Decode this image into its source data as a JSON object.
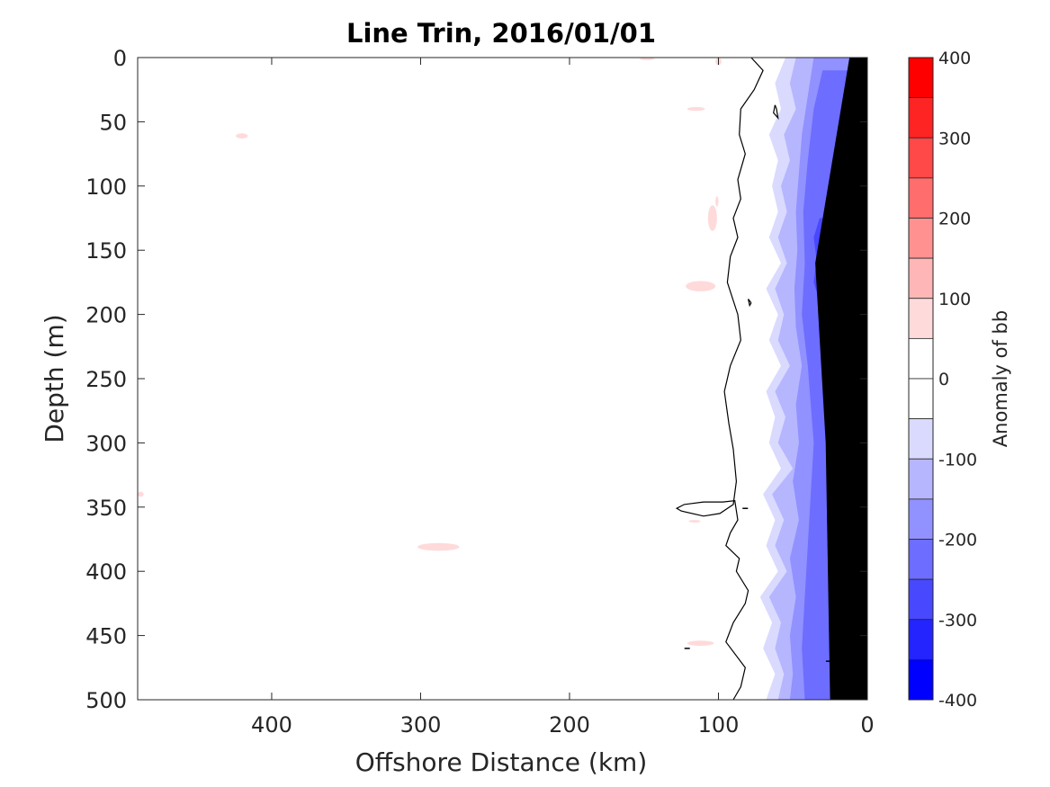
{
  "chart_data": {
    "type": "heatmap",
    "title": "Line Trin, 2016/01/01",
    "xlabel": "Offshore Distance (km)",
    "ylabel": "Depth (m)",
    "colorbar_label": "Anomaly of bb",
    "x_reversed": true,
    "y_reversed": true,
    "xlim": [
      0,
      490
    ],
    "ylim": [
      0,
      500
    ],
    "x_ticks": [
      {
        "value": 400,
        "label": "400"
      },
      {
        "value": 300,
        "label": "300"
      },
      {
        "value": 200,
        "label": "200"
      },
      {
        "value": 100,
        "label": "100"
      },
      {
        "value": 0,
        "label": "0"
      }
    ],
    "y_ticks": [
      {
        "value": 0,
        "label": "0"
      },
      {
        "value": 50,
        "label": "50"
      },
      {
        "value": 100,
        "label": "100"
      },
      {
        "value": 150,
        "label": "150"
      },
      {
        "value": 200,
        "label": "200"
      },
      {
        "value": 250,
        "label": "250"
      },
      {
        "value": 300,
        "label": "300"
      },
      {
        "value": 350,
        "label": "350"
      },
      {
        "value": 400,
        "label": "400"
      },
      {
        "value": 450,
        "label": "450"
      },
      {
        "value": 500,
        "label": "500"
      }
    ],
    "clim": [
      -400,
      400
    ],
    "colorbar_ticks": [
      {
        "value": 400,
        "label": "400"
      },
      {
        "value": 300,
        "label": "300"
      },
      {
        "value": 200,
        "label": "200"
      },
      {
        "value": 100,
        "label": "100"
      },
      {
        "value": 0,
        "label": "0"
      },
      {
        "value": -100,
        "label": "-100"
      },
      {
        "value": -200,
        "label": "-200"
      },
      {
        "value": -300,
        "label": "-300"
      },
      {
        "value": -400,
        "label": "-400"
      }
    ],
    "colorbar_levels": [
      {
        "from": 350,
        "to": 400,
        "color": "#ff0000"
      },
      {
        "from": 300,
        "to": 350,
        "color": "#ff2424"
      },
      {
        "from": 250,
        "to": 300,
        "color": "#ff4848"
      },
      {
        "from": 200,
        "to": 250,
        "color": "#ff6d6d"
      },
      {
        "from": 150,
        "to": 200,
        "color": "#ff9191"
      },
      {
        "from": 100,
        "to": 150,
        "color": "#ffb6b6"
      },
      {
        "from": 50,
        "to": 100,
        "color": "#ffdada"
      },
      {
        "from": 0,
        "to": 50,
        "color": "#ffffff"
      },
      {
        "from": -50,
        "to": 0,
        "color": "#ffffff"
      },
      {
        "from": -100,
        "to": -50,
        "color": "#dadaff"
      },
      {
        "from": -150,
        "to": -100,
        "color": "#b6b6ff"
      },
      {
        "from": -200,
        "to": -150,
        "color": "#9191ff"
      },
      {
        "from": -250,
        "to": -200,
        "color": "#6d6dff"
      },
      {
        "from": -300,
        "to": -250,
        "color": "#4848ff"
      },
      {
        "from": -350,
        "to": -300,
        "color": "#2424ff"
      },
      {
        "from": -400,
        "to": -350,
        "color": "#0000ff"
      }
    ],
    "seafloor_color": "#000000",
    "seafloor": [
      [
        0,
        0
      ],
      [
        0,
        500
      ],
      [
        25,
        500
      ],
      [
        28,
        300
      ],
      [
        35,
        160
      ],
      [
        12,
        0
      ]
    ],
    "zero_contour": [
      [
        78,
        0
      ],
      [
        70,
        10
      ],
      [
        76,
        25
      ],
      [
        85,
        40
      ],
      [
        86,
        60
      ],
      [
        82,
        75
      ],
      [
        87,
        95
      ],
      [
        85,
        110
      ],
      [
        90,
        125
      ],
      [
        87,
        140
      ],
      [
        92,
        155
      ],
      [
        94,
        175
      ],
      [
        87,
        200
      ],
      [
        85,
        220
      ],
      [
        92,
        240
      ],
      [
        96,
        260
      ],
      [
        93,
        285
      ],
      [
        90,
        305
      ],
      [
        88,
        330
      ],
      [
        90,
        348
      ],
      [
        99,
        355
      ],
      [
        110,
        357
      ],
      [
        125,
        353
      ],
      [
        128,
        351
      ],
      [
        123,
        348
      ],
      [
        110,
        346
      ],
      [
        97,
        346
      ],
      [
        89,
        345
      ],
      [
        87,
        360
      ],
      [
        92,
        370
      ],
      [
        95,
        380
      ],
      [
        86,
        390
      ],
      [
        88,
        400
      ],
      [
        80,
        415
      ],
      [
        82,
        425
      ],
      [
        90,
        440
      ],
      [
        95,
        455
      ],
      [
        82,
        475
      ],
      [
        85,
        490
      ],
      [
        90,
        500
      ]
    ],
    "small_contours": [
      [
        [
          62,
          37
        ],
        [
          63,
          43
        ],
        [
          60,
          47
        ],
        [
          61,
          40
        ],
        [
          62,
          37
        ]
      ],
      [
        [
          78,
          191
        ],
        [
          80,
          188
        ],
        [
          79,
          193
        ],
        [
          78,
          191
        ]
      ],
      [
        [
          15,
          292
        ],
        [
          21,
          288
        ],
        [
          20,
          295
        ],
        [
          15,
          292
        ]
      ],
      [
        [
          20,
          330
        ],
        [
          26,
          323
        ],
        [
          24,
          337
        ],
        [
          20,
          330
        ]
      ]
    ],
    "small_marks": [
      [
        121,
        460
      ],
      [
        82,
        351
      ],
      [
        9,
        58
      ],
      [
        26,
        470
      ]
    ],
    "anomaly_bands": [
      {
        "color": "#dadaff",
        "left": [
          [
            55,
            0
          ],
          [
            62,
            20
          ],
          [
            58,
            40
          ],
          [
            66,
            60
          ],
          [
            60,
            80
          ],
          [
            64,
            100
          ],
          [
            60,
            120
          ],
          [
            66,
            140
          ],
          [
            58,
            160
          ],
          [
            68,
            180
          ],
          [
            60,
            200
          ],
          [
            66,
            220
          ],
          [
            58,
            240
          ],
          [
            68,
            260
          ],
          [
            62,
            280
          ],
          [
            66,
            300
          ],
          [
            58,
            320
          ],
          [
            70,
            340
          ],
          [
            62,
            360
          ],
          [
            68,
            380
          ],
          [
            60,
            400
          ],
          [
            72,
            420
          ],
          [
            64,
            440
          ],
          [
            70,
            460
          ],
          [
            62,
            480
          ],
          [
            68,
            500
          ]
        ]
      },
      {
        "color": "#b6b6ff",
        "left": [
          [
            48,
            0
          ],
          [
            52,
            20
          ],
          [
            48,
            40
          ],
          [
            56,
            60
          ],
          [
            52,
            80
          ],
          [
            58,
            100
          ],
          [
            54,
            120
          ],
          [
            60,
            140
          ],
          [
            54,
            160
          ],
          [
            62,
            180
          ],
          [
            56,
            200
          ],
          [
            60,
            220
          ],
          [
            52,
            240
          ],
          [
            62,
            260
          ],
          [
            55,
            280
          ],
          [
            60,
            300
          ],
          [
            50,
            320
          ],
          [
            64,
            340
          ],
          [
            56,
            360
          ],
          [
            62,
            380
          ],
          [
            54,
            400
          ],
          [
            66,
            420
          ],
          [
            58,
            440
          ],
          [
            62,
            460
          ],
          [
            56,
            480
          ],
          [
            60,
            500
          ]
        ]
      },
      {
        "color": "#9191ff",
        "left": [
          [
            36,
            0
          ],
          [
            40,
            30
          ],
          [
            44,
            60
          ],
          [
            46,
            90
          ],
          [
            48,
            120
          ],
          [
            47,
            150
          ],
          [
            49,
            180
          ],
          [
            48,
            210
          ],
          [
            44,
            240
          ],
          [
            48,
            270
          ],
          [
            46,
            300
          ],
          [
            50,
            330
          ],
          [
            46,
            360
          ],
          [
            52,
            390
          ],
          [
            48,
            420
          ],
          [
            52,
            450
          ],
          [
            50,
            480
          ],
          [
            52,
            500
          ]
        ]
      },
      {
        "color": "#6d6dff",
        "left": [
          [
            30,
            10
          ],
          [
            36,
            40
          ],
          [
            40,
            80
          ],
          [
            43,
            120
          ],
          [
            42,
            160
          ],
          [
            44,
            200
          ],
          [
            40,
            240
          ],
          [
            38,
            270
          ],
          [
            36,
            300
          ],
          [
            38,
            340
          ],
          [
            40,
            380
          ],
          [
            42,
            420
          ],
          [
            44,
            460
          ],
          [
            42,
            500
          ]
        ]
      },
      {
        "color": "#4848ff",
        "left": [
          [
            32,
            125
          ],
          [
            36,
            140
          ],
          [
            34,
            158
          ],
          [
            36,
            175
          ],
          [
            32,
            190
          ]
        ]
      }
    ],
    "weak_positive_patches": [
      {
        "center": [
          420,
          61
        ],
        "rx": 4,
        "ry": 2
      },
      {
        "center": [
          288,
          381
        ],
        "rx": 14,
        "ry": 3
      },
      {
        "center": [
          148,
          1
        ],
        "rx": 5,
        "ry": 1
      },
      {
        "center": [
          100,
          3
        ],
        "rx": 2,
        "ry": 3
      },
      {
        "center": [
          115,
          40
        ],
        "rx": 6,
        "ry": 1.5
      },
      {
        "center": [
          104,
          125
        ],
        "rx": 3,
        "ry": 10
      },
      {
        "center": [
          101,
          112
        ],
        "rx": 1,
        "ry": 4
      },
      {
        "center": [
          112,
          178
        ],
        "rx": 10,
        "ry": 4
      },
      {
        "center": [
          112,
          456
        ],
        "rx": 9,
        "ry": 2
      },
      {
        "center": [
          116,
          361
        ],
        "rx": 4,
        "ry": 1
      },
      {
        "center": [
          488,
          340
        ],
        "rx": 2,
        "ry": 2
      },
      {
        "center": [
          18,
          172
        ],
        "rx": 3,
        "ry": 6
      }
    ],
    "grid": false,
    "legend": "colorbar-right"
  }
}
